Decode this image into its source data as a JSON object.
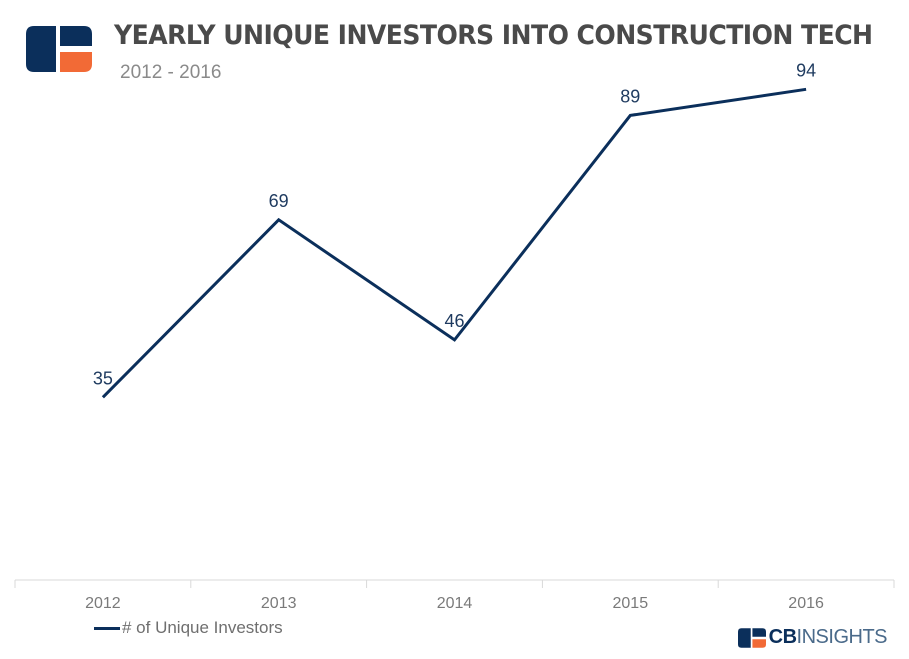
{
  "header": {
    "title": "YEARLY UNIQUE INVESTORS INTO CONSTRUCTION TECH",
    "subtitle": "2012 - 2016"
  },
  "brand": {
    "part1": "CB",
    "part2": "INSIGHTS",
    "colors": {
      "navy": "#0b2f5b",
      "orange": "#f26a36",
      "light_blue": "#4a6a8a"
    }
  },
  "legend": {
    "label": "# of Unique Investors"
  },
  "chart_data": {
    "type": "line",
    "title": "YEARLY UNIQUE INVESTORS INTO CONSTRUCTION TECH",
    "subtitle": "2012 - 2016",
    "categories": [
      "2012",
      "2013",
      "2014",
      "2015",
      "2016"
    ],
    "series": [
      {
        "name": "# of Unique Investors",
        "values": [
          35,
          69,
          46,
          89,
          94
        ],
        "color": "#0b2f5b"
      }
    ],
    "xlabel": "",
    "ylabel": "",
    "ylim": [
      0,
      100
    ],
    "grid": false,
    "data_labels": true,
    "legend_position": "bottom-left"
  }
}
